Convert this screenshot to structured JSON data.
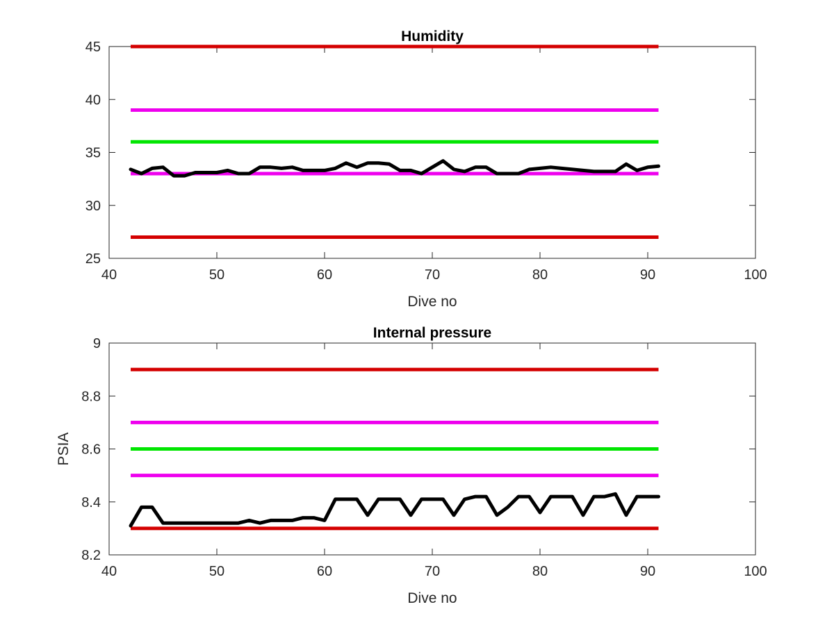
{
  "chart_data": [
    {
      "type": "line",
      "title": "Humidity",
      "xlabel": "Dive no",
      "ylabel": "",
      "xlim": [
        40,
        100
      ],
      "ylim": [
        25,
        45
      ],
      "xticks": [
        40,
        50,
        60,
        70,
        80,
        90,
        100
      ],
      "yticks": [
        25,
        30,
        35,
        40,
        45
      ],
      "xtick_labels": [
        "40",
        "50",
        "60",
        "70",
        "80",
        "90",
        "100"
      ],
      "ytick_labels": [
        "25",
        "30",
        "35",
        "40",
        "45"
      ],
      "grid": false,
      "reference_lines": [
        {
          "y": 45,
          "x_range": [
            42,
            91
          ],
          "color": "#d40000"
        },
        {
          "y": 39,
          "x_range": [
            42,
            91
          ],
          "color": "#ee00ee"
        },
        {
          "y": 36,
          "x_range": [
            42,
            91
          ],
          "color": "#00e600"
        },
        {
          "y": 33,
          "x_range": [
            42,
            91
          ],
          "color": "#ee00ee"
        },
        {
          "y": 27,
          "x_range": [
            42,
            91
          ],
          "color": "#d40000"
        }
      ],
      "series": [
        {
          "color": "#000000",
          "x": [
            42,
            43,
            44,
            45,
            46,
            47,
            48,
            49,
            50,
            51,
            52,
            53,
            54,
            55,
            56,
            57,
            58,
            59,
            60,
            61,
            62,
            63,
            64,
            65,
            66,
            67,
            68,
            69,
            70,
            71,
            72,
            73,
            74,
            75,
            76,
            77,
            78,
            79,
            80,
            81,
            82,
            83,
            84,
            85,
            86,
            87,
            88,
            89,
            90,
            91
          ],
          "y": [
            33.4,
            33.0,
            33.5,
            33.6,
            32.8,
            32.8,
            33.1,
            33.1,
            33.1,
            33.3,
            33.0,
            33.0,
            33.6,
            33.6,
            33.5,
            33.6,
            33.3,
            33.3,
            33.3,
            33.5,
            34.0,
            33.6,
            34.0,
            34.0,
            33.9,
            33.3,
            33.3,
            33.0,
            33.6,
            34.2,
            33.4,
            33.2,
            33.6,
            33.6,
            33.0,
            33.0,
            33.0,
            33.4,
            33.5,
            33.6,
            33.5,
            33.4,
            33.3,
            33.2,
            33.2,
            33.2,
            33.9,
            33.3,
            33.6,
            33.7
          ]
        }
      ]
    },
    {
      "type": "line",
      "title": "Internal pressure",
      "xlabel": "Dive no",
      "ylabel": "PSIA",
      "xlim": [
        40,
        100
      ],
      "ylim": [
        8.2,
        9.0
      ],
      "xticks": [
        40,
        50,
        60,
        70,
        80,
        90,
        100
      ],
      "yticks": [
        8.2,
        8.4,
        8.6,
        8.8,
        9.0
      ],
      "xtick_labels": [
        "40",
        "50",
        "60",
        "70",
        "80",
        "90",
        "100"
      ],
      "ytick_labels": [
        "8.2",
        "8.4",
        "8.6",
        "8.8",
        "9"
      ],
      "grid": false,
      "reference_lines": [
        {
          "y": 8.9,
          "x_range": [
            42,
            91
          ],
          "color": "#d40000"
        },
        {
          "y": 8.7,
          "x_range": [
            42,
            91
          ],
          "color": "#ee00ee"
        },
        {
          "y": 8.6,
          "x_range": [
            42,
            91
          ],
          "color": "#00e600"
        },
        {
          "y": 8.5,
          "x_range": [
            42,
            91
          ],
          "color": "#ee00ee"
        },
        {
          "y": 8.3,
          "x_range": [
            42,
            91
          ],
          "color": "#d40000"
        }
      ],
      "series": [
        {
          "color": "#000000",
          "x": [
            42,
            43,
            44,
            45,
            46,
            47,
            48,
            49,
            50,
            51,
            52,
            53,
            54,
            55,
            56,
            57,
            58,
            59,
            60,
            61,
            62,
            63,
            64,
            65,
            66,
            67,
            68,
            69,
            70,
            71,
            72,
            73,
            74,
            75,
            76,
            77,
            78,
            79,
            80,
            81,
            82,
            83,
            84,
            85,
            86,
            87,
            88,
            89,
            90,
            91
          ],
          "y": [
            8.31,
            8.38,
            8.38,
            8.32,
            8.32,
            8.32,
            8.32,
            8.32,
            8.32,
            8.32,
            8.32,
            8.33,
            8.32,
            8.33,
            8.33,
            8.33,
            8.34,
            8.34,
            8.33,
            8.41,
            8.41,
            8.41,
            8.35,
            8.41,
            8.41,
            8.41,
            8.35,
            8.41,
            8.41,
            8.41,
            8.35,
            8.41,
            8.42,
            8.42,
            8.35,
            8.38,
            8.42,
            8.42,
            8.36,
            8.42,
            8.42,
            8.42,
            8.35,
            8.42,
            8.42,
            8.43,
            8.35,
            8.42,
            8.42,
            8.42
          ]
        }
      ]
    }
  ]
}
